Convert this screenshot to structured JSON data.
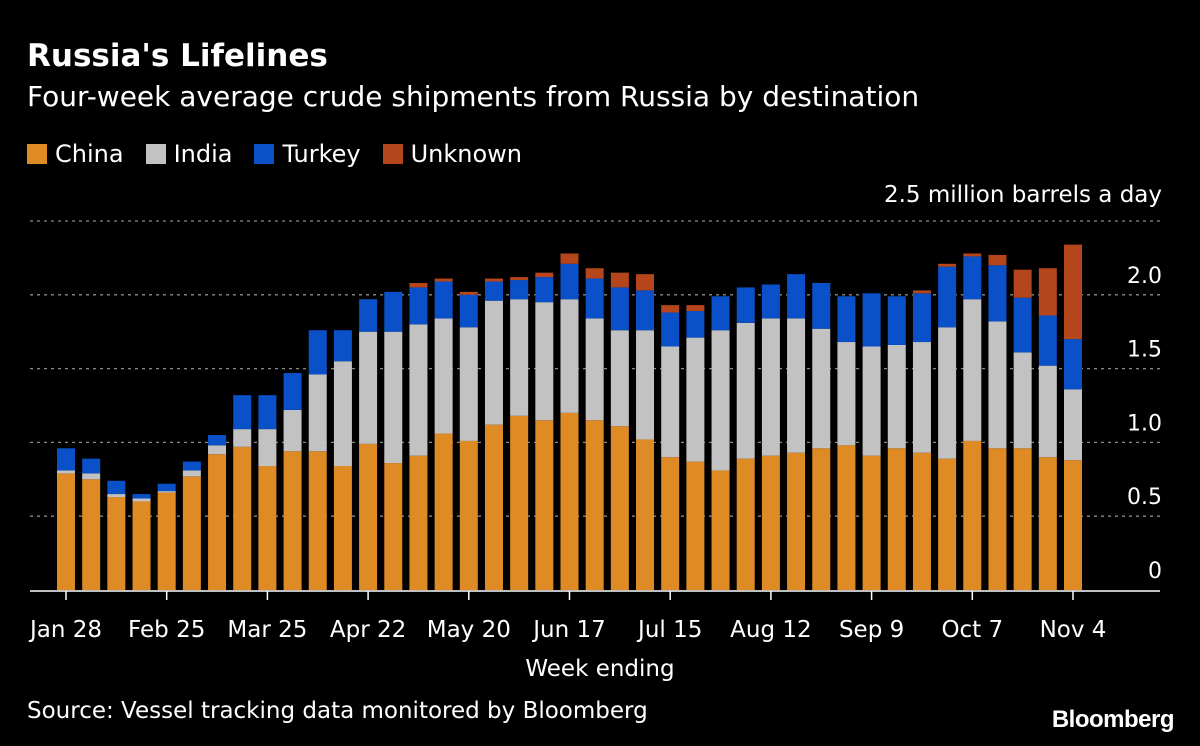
{
  "title": "Russia's Lifelines",
  "subtitle": "Four-week average crude shipments from Russia by destination",
  "source": "Source: Vessel tracking data monitored by Bloomberg",
  "logo": "Bloomberg",
  "chart_data": {
    "type": "bar",
    "stacked": true,
    "title": "Russia's Lifelines",
    "subtitle": "Four-week average crude shipments from Russia by destination",
    "xlabel": "Week ending",
    "ylabel": "",
    "unit_label": "2.5 million barrels a day",
    "ylim": [
      0,
      2.5
    ],
    "yticks": [
      0,
      0.5,
      1.0,
      1.5,
      2.0,
      2.5
    ],
    "ytick_labels": [
      "0",
      "0.5",
      "1.0",
      "1.5",
      "2.0",
      ""
    ],
    "grid": true,
    "legend_placement": "top-left",
    "categories": [
      "Jan 28",
      "Feb 4",
      "Feb 11",
      "Feb 18",
      "Feb 25",
      "Mar 4",
      "Mar 11",
      "Mar 18",
      "Mar 25",
      "Apr 1",
      "Apr 8",
      "Apr 15",
      "Apr 22",
      "Apr 29",
      "May 6",
      "May 13",
      "May 20",
      "May 27",
      "Jun 3",
      "Jun 10",
      "Jun 17",
      "Jun 24",
      "Jul 1",
      "Jul 8",
      "Jul 15",
      "Jul 22",
      "Jul 29",
      "Aug 5",
      "Aug 12",
      "Aug 19",
      "Aug 26",
      "Sep 2",
      "Sep 9",
      "Sep 16",
      "Sep 23",
      "Sep 30",
      "Oct 7",
      "Oct 14",
      "Oct 21",
      "Oct 28",
      "Nov 4"
    ],
    "xtick_labels": [
      "Jan 28",
      "Feb 25",
      "Mar 25",
      "Apr 22",
      "May 20",
      "Jun 17",
      "Jul 15",
      "Aug 12",
      "Sep 9",
      "Oct 7",
      "Nov 4"
    ],
    "series": [
      {
        "name": "China",
        "color": "#df8b25",
        "values": [
          0.79,
          0.75,
          0.63,
          0.6,
          0.66,
          0.77,
          0.92,
          0.97,
          0.84,
          0.94,
          0.94,
          0.84,
          0.99,
          0.86,
          0.91,
          1.06,
          1.01,
          1.12,
          1.18,
          1.15,
          1.2,
          1.15,
          1.11,
          1.02,
          0.9,
          0.87,
          0.81,
          0.89,
          0.91,
          0.93,
          0.96,
          0.98,
          0.91,
          0.96,
          0.93,
          0.89,
          1.01,
          0.96,
          0.96,
          0.9,
          0.88
        ]
      },
      {
        "name": "India",
        "color": "#c2c2c2",
        "values": [
          0.02,
          0.04,
          0.02,
          0.02,
          0.01,
          0.04,
          0.06,
          0.12,
          0.25,
          0.28,
          0.52,
          0.71,
          0.76,
          0.89,
          0.89,
          0.78,
          0.77,
          0.84,
          0.79,
          0.8,
          0.77,
          0.69,
          0.65,
          0.74,
          0.75,
          0.84,
          0.95,
          0.92,
          0.93,
          0.91,
          0.81,
          0.7,
          0.74,
          0.7,
          0.75,
          0.89,
          0.96,
          0.86,
          0.65,
          0.62,
          0.48
        ]
      },
      {
        "name": "Turkey",
        "color": "#0a50c8",
        "values": [
          0.15,
          0.1,
          0.09,
          0.03,
          0.05,
          0.06,
          0.07,
          0.23,
          0.23,
          0.25,
          0.3,
          0.21,
          0.22,
          0.27,
          0.25,
          0.25,
          0.22,
          0.13,
          0.13,
          0.17,
          0.24,
          0.27,
          0.29,
          0.27,
          0.23,
          0.18,
          0.23,
          0.24,
          0.23,
          0.3,
          0.31,
          0.31,
          0.36,
          0.33,
          0.33,
          0.41,
          0.29,
          0.38,
          0.37,
          0.34,
          0.34
        ]
      },
      {
        "name": "Unknown",
        "color": "#b5451b",
        "values": [
          0,
          0,
          0,
          0,
          0,
          0,
          0,
          0,
          0,
          0,
          0,
          0,
          0,
          0,
          0.03,
          0.02,
          0.02,
          0.02,
          0.02,
          0.03,
          0.07,
          0.07,
          0.1,
          0.11,
          0.05,
          0.04,
          0,
          0,
          0,
          0,
          0,
          0,
          0,
          0,
          0.02,
          0.02,
          0.02,
          0.07,
          0.19,
          0.32,
          0.64
        ]
      }
    ]
  }
}
